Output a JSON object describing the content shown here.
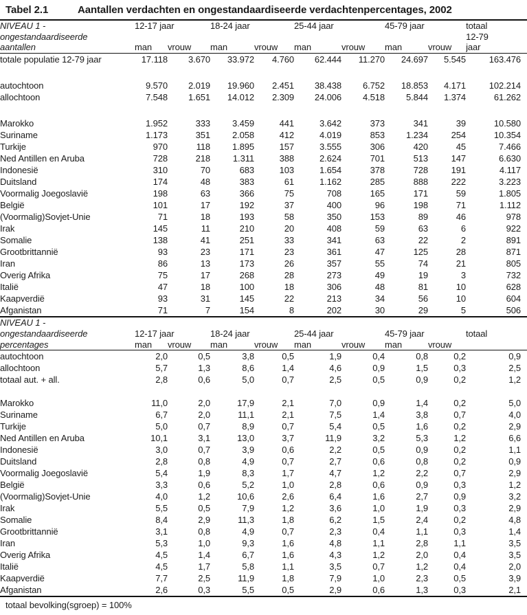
{
  "title": {
    "number": "Tabel 2.1",
    "caption": "Aantallen verdachten en ongestandaardiseerde verdachtenpercentages, 2002"
  },
  "age_groups": [
    "12-17 jaar",
    "18-24 jaar",
    "25-44 jaar",
    "45-79 jaar"
  ],
  "sub_headers": [
    "man",
    "vrouw"
  ],
  "section1": {
    "header_lines": [
      "NIVEAU 1 -",
      "ongestandaardiseerde",
      "aantallen"
    ],
    "total_lines": [
      "totaal",
      "12-79",
      "jaar"
    ],
    "rows": [
      {
        "label": "totale populatie 12-79 jaar",
        "values": [
          "17.118",
          "3.670",
          "33.972",
          "4.760",
          "62.444",
          "11.270",
          "24.697",
          "5.545",
          "163.476"
        ],
        "spacer_after": true
      },
      {
        "label": "autochtoon",
        "values": [
          "9.570",
          "2.019",
          "19.960",
          "2.451",
          "38.438",
          "6.752",
          "18.853",
          "4.171",
          "102.214"
        ]
      },
      {
        "label": "allochtoon",
        "values": [
          "7.548",
          "1.651",
          "14.012",
          "2.309",
          "24.006",
          "4.518",
          "5.844",
          "1.374",
          "61.262"
        ],
        "spacer_after": true
      },
      {
        "label": "Marokko",
        "values": [
          "1.952",
          "333",
          "3.459",
          "441",
          "3.642",
          "373",
          "341",
          "39",
          "10.580"
        ]
      },
      {
        "label": "Suriname",
        "values": [
          "1.173",
          "351",
          "2.058",
          "412",
          "4.019",
          "853",
          "1.234",
          "254",
          "10.354"
        ]
      },
      {
        "label": "Turkije",
        "values": [
          "970",
          "118",
          "1.895",
          "157",
          "3.555",
          "306",
          "420",
          "45",
          "7.466"
        ]
      },
      {
        "label": "Ned Antillen en Aruba",
        "values": [
          "728",
          "218",
          "1.311",
          "388",
          "2.624",
          "701",
          "513",
          "147",
          "6.630"
        ]
      },
      {
        "label": "Indonesië",
        "values": [
          "310",
          "70",
          "683",
          "103",
          "1.654",
          "378",
          "728",
          "191",
          "4.117"
        ]
      },
      {
        "label": "Duitsland",
        "values": [
          "174",
          "48",
          "383",
          "61",
          "1.162",
          "285",
          "888",
          "222",
          "3.223"
        ]
      },
      {
        "label": "Voormalig Joegoslavië",
        "values": [
          "198",
          "63",
          "366",
          "75",
          "708",
          "165",
          "171",
          "59",
          "1.805"
        ]
      },
      {
        "label": "België",
        "values": [
          "101",
          "17",
          "192",
          "37",
          "400",
          "96",
          "198",
          "71",
          "1.112"
        ]
      },
      {
        "label": "(Voormalig)Sovjet-Unie",
        "values": [
          "71",
          "18",
          "193",
          "58",
          "350",
          "153",
          "89",
          "46",
          "978"
        ]
      },
      {
        "label": "Irak",
        "values": [
          "145",
          "11",
          "210",
          "20",
          "408",
          "59",
          "63",
          "6",
          "922"
        ]
      },
      {
        "label": "Somalie",
        "values": [
          "138",
          "41",
          "251",
          "33",
          "341",
          "63",
          "22",
          "2",
          "891"
        ]
      },
      {
        "label": "Grootbrittannië",
        "values": [
          "93",
          "23",
          "171",
          "23",
          "361",
          "47",
          "125",
          "28",
          "871"
        ]
      },
      {
        "label": "Iran",
        "values": [
          "86",
          "13",
          "173",
          "26",
          "357",
          "55",
          "74",
          "21",
          "805"
        ]
      },
      {
        "label": "Overig Afrika",
        "values": [
          "75",
          "17",
          "268",
          "28",
          "273",
          "49",
          "19",
          "3",
          "732"
        ]
      },
      {
        "label": "Italië",
        "values": [
          "47",
          "18",
          "100",
          "18",
          "306",
          "48",
          "81",
          "10",
          "628"
        ]
      },
      {
        "label": "Kaapverdië",
        "values": [
          "93",
          "31",
          "145",
          "22",
          "213",
          "34",
          "56",
          "10",
          "604"
        ]
      },
      {
        "label": "Afganistan",
        "values": [
          "71",
          "7",
          "154",
          "8",
          "202",
          "30",
          "29",
          "5",
          "506"
        ]
      }
    ]
  },
  "section2": {
    "header_lines": [
      "NIVEAU 1 -",
      "ongestandaardiseerde",
      "percentages"
    ],
    "total_header": "totaal",
    "rows": [
      {
        "label": "autochtoon",
        "values": [
          "2,0",
          "0,5",
          "3,8",
          "0,5",
          "1,9",
          "0,4",
          "0,8",
          "0,2",
          "0,9"
        ]
      },
      {
        "label": "allochtoon",
        "values": [
          "5,7",
          "1,3",
          "8,6",
          "1,4",
          "4,6",
          "0,9",
          "1,5",
          "0,3",
          "2,5"
        ]
      },
      {
        "label": "totaal aut. + all.",
        "values": [
          "2,8",
          "0,6",
          "5,0",
          "0,7",
          "2,5",
          "0,5",
          "0,9",
          "0,2",
          "1,2"
        ],
        "spacer_after": true
      },
      {
        "label": "Marokko",
        "values": [
          "11,0",
          "2,0",
          "17,9",
          "2,1",
          "7,0",
          "0,9",
          "1,4",
          "0,2",
          "5,0"
        ]
      },
      {
        "label": "Suriname",
        "values": [
          "6,7",
          "2,0",
          "11,1",
          "2,1",
          "7,5",
          "1,4",
          "3,8",
          "0,7",
          "4,0"
        ]
      },
      {
        "label": "Turkije",
        "values": [
          "5,0",
          "0,7",
          "8,9",
          "0,7",
          "5,4",
          "0,5",
          "1,6",
          "0,2",
          "2,9"
        ]
      },
      {
        "label": "Ned Antillen en Aruba",
        "values": [
          "10,1",
          "3,1",
          "13,0",
          "3,7",
          "11,9",
          "3,2",
          "5,3",
          "1,2",
          "6,6"
        ]
      },
      {
        "label": "Indonesië",
        "values": [
          "3,0",
          "0,7",
          "3,9",
          "0,6",
          "2,2",
          "0,5",
          "0,9",
          "0,2",
          "1,1"
        ]
      },
      {
        "label": "Duitsland",
        "values": [
          "2,8",
          "0,8",
          "4,9",
          "0,7",
          "2,7",
          "0,6",
          "0,8",
          "0,2",
          "0,9"
        ]
      },
      {
        "label": "Voormalig Joegoslavië",
        "values": [
          "5,4",
          "1,9",
          "8,3",
          "1,7",
          "4,7",
          "1,2",
          "2,2",
          "0,7",
          "2,9"
        ]
      },
      {
        "label": "België",
        "values": [
          "3,3",
          "0,6",
          "5,2",
          "1,0",
          "2,8",
          "0,6",
          "0,9",
          "0,3",
          "1,2"
        ]
      },
      {
        "label": "(Voormalig)Sovjet-Unie",
        "values": [
          "4,0",
          "1,2",
          "10,6",
          "2,6",
          "6,4",
          "1,6",
          "2,7",
          "0,9",
          "3,2"
        ]
      },
      {
        "label": "Irak",
        "values": [
          "5,5",
          "0,5",
          "7,9",
          "1,2",
          "3,6",
          "1,0",
          "1,9",
          "0,3",
          "2,9"
        ]
      },
      {
        "label": "Somalie",
        "values": [
          "8,4",
          "2,9",
          "11,3",
          "1,8",
          "6,2",
          "1,5",
          "2,4",
          "0,2",
          "4,8"
        ]
      },
      {
        "label": "Grootbrittannië",
        "values": [
          "3,1",
          "0,8",
          "4,9",
          "0,7",
          "2,3",
          "0,4",
          "1,1",
          "0,3",
          "1,4"
        ]
      },
      {
        "label": "Iran",
        "values": [
          "5,3",
          "1,0",
          "9,3",
          "1,6",
          "4,8",
          "1,1",
          "2,8",
          "1,1",
          "3,5"
        ]
      },
      {
        "label": "Overig Afrika",
        "values": [
          "4,5",
          "1,4",
          "6,7",
          "1,6",
          "4,3",
          "1,2",
          "2,0",
          "0,4",
          "3,5"
        ]
      },
      {
        "label": "Italië",
        "values": [
          "4,5",
          "1,7",
          "5,8",
          "1,1",
          "3,5",
          "0,7",
          "1,2",
          "0,4",
          "2,0"
        ]
      },
      {
        "label": "Kaapverdië",
        "values": [
          "7,7",
          "2,5",
          "11,9",
          "1,8",
          "7,9",
          "1,0",
          "2,3",
          "0,5",
          "3,9"
        ]
      },
      {
        "label": "Afganistan",
        "values": [
          "2,6",
          "0,3",
          "5,5",
          "0,5",
          "2,9",
          "0,6",
          "1,3",
          "0,3",
          "2,1"
        ]
      }
    ]
  },
  "footer": "totaal bevolking(sgroep) = 100%"
}
